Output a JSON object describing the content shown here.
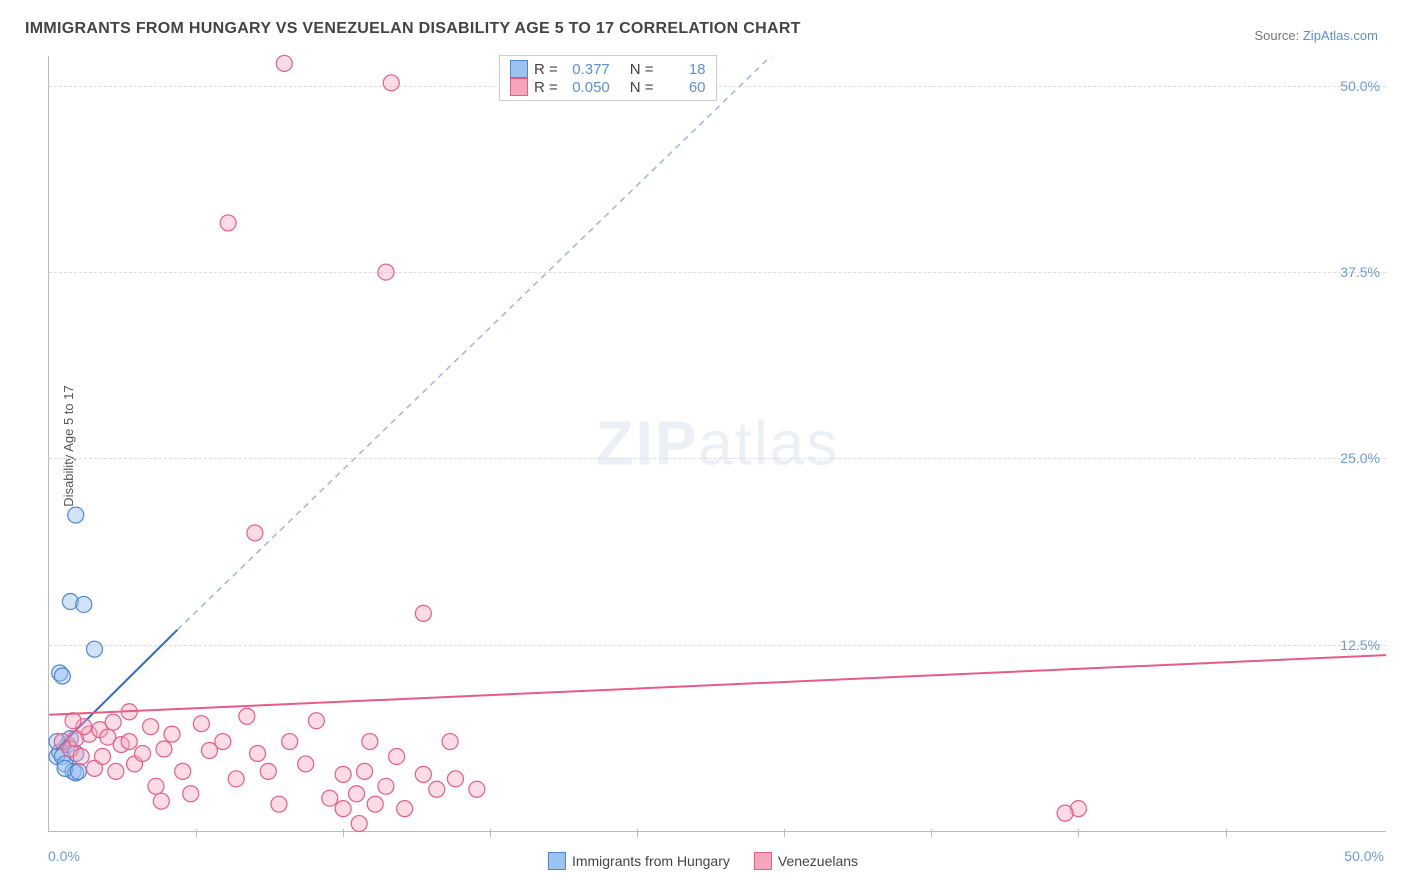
{
  "title": "IMMIGRANTS FROM HUNGARY VS VENEZUELAN DISABILITY AGE 5 TO 17 CORRELATION CHART",
  "source_prefix": "Source: ",
  "source_link": "ZipAtlas.com",
  "ylabel": "Disability Age 5 to 17",
  "watermark_bold": "ZIP",
  "watermark_rest": "atlas",
  "chart": {
    "type": "scatter",
    "xlim": [
      0,
      50
    ],
    "ylim": [
      0,
      52
    ],
    "xunit": "%",
    "yunit": "%",
    "xticks": [
      5.5,
      11,
      16.5,
      22,
      27.5,
      33,
      38.5,
      44
    ],
    "yticks": [
      {
        "v": 12.5,
        "label": "12.5%"
      },
      {
        "v": 25.0,
        "label": "25.0%"
      },
      {
        "v": 37.5,
        "label": "37.5%"
      },
      {
        "v": 50.0,
        "label": "50.0%"
      }
    ],
    "xmin_label": "0.0%",
    "xmax_label": "50.0%",
    "background_color": "#ffffff",
    "grid_color": "#dddddd",
    "marker_radius": 8,
    "series": [
      {
        "key": "hungary",
        "label": "Immigrants from Hungary",
        "fill": "#9cc2ee",
        "fill_opacity": 0.45,
        "stroke": "#4f86d1",
        "r_value": "0.377",
        "n_value": "18",
        "trend": {
          "x1": 0.3,
          "y1": 5.5,
          "x2": 4.8,
          "y2": 13.5,
          "color": "#2f6bc2",
          "width": 2,
          "dash": "none",
          "ext_x2": 27.0,
          "ext_y2": 52.0,
          "ext_dash": "6,5",
          "ext_color": "#9db8d6"
        },
        "points": [
          [
            0.3,
            5.0
          ],
          [
            0.4,
            5.3
          ],
          [
            0.5,
            5.0
          ],
          [
            0.6,
            4.5
          ],
          [
            0.7,
            5.8
          ],
          [
            0.8,
            6.2
          ],
          [
            0.9,
            4.0
          ],
          [
            1.0,
            5.2
          ],
          [
            0.4,
            10.6
          ],
          [
            0.5,
            10.4
          ],
          [
            0.8,
            15.4
          ],
          [
            1.3,
            15.2
          ],
          [
            1.7,
            12.2
          ],
          [
            1.0,
            21.2
          ],
          [
            1.0,
            3.9
          ],
          [
            0.6,
            4.2
          ],
          [
            1.1,
            4.0
          ],
          [
            0.3,
            6.0
          ]
        ]
      },
      {
        "key": "venezuelans",
        "label": "Venezuelans",
        "fill": "#f5a6bb",
        "fill_opacity": 0.4,
        "stroke": "#e75c86",
        "r_value": "0.050",
        "n_value": "60",
        "trend": {
          "x1": 0,
          "y1": 7.8,
          "x2": 50,
          "y2": 11.8,
          "color": "#e75c86",
          "width": 2,
          "dash": "none"
        },
        "points": [
          [
            0.5,
            6.0
          ],
          [
            0.8,
            5.5
          ],
          [
            1.0,
            6.2
          ],
          [
            1.2,
            5.0
          ],
          [
            1.5,
            6.5
          ],
          [
            1.7,
            4.2
          ],
          [
            1.9,
            6.8
          ],
          [
            2.0,
            5.0
          ],
          [
            2.2,
            6.3
          ],
          [
            2.5,
            4.0
          ],
          [
            2.7,
            5.8
          ],
          [
            3.0,
            6.0
          ],
          [
            3.2,
            4.5
          ],
          [
            3.5,
            5.2
          ],
          [
            3.8,
            7.0
          ],
          [
            4.0,
            3.0
          ],
          [
            4.3,
            5.5
          ],
          [
            4.6,
            6.5
          ],
          [
            5.0,
            4.0
          ],
          [
            5.3,
            2.5
          ],
          [
            5.7,
            7.2
          ],
          [
            6.0,
            5.4
          ],
          [
            6.5,
            6.0
          ],
          [
            7.0,
            3.5
          ],
          [
            7.4,
            7.7
          ],
          [
            7.8,
            5.2
          ],
          [
            8.2,
            4.0
          ],
          [
            8.6,
            1.8
          ],
          [
            9.0,
            6.0
          ],
          [
            9.6,
            4.5
          ],
          [
            10.0,
            7.4
          ],
          [
            10.5,
            2.2
          ],
          [
            11.0,
            3.8
          ],
          [
            11.0,
            1.5
          ],
          [
            11.5,
            2.5
          ],
          [
            11.6,
            0.5
          ],
          [
            11.8,
            4.0
          ],
          [
            12.0,
            6.0
          ],
          [
            12.2,
            1.8
          ],
          [
            12.6,
            3.0
          ],
          [
            13.0,
            5.0
          ],
          [
            13.3,
            1.5
          ],
          [
            14.0,
            3.8
          ],
          [
            14.0,
            14.6
          ],
          [
            14.5,
            2.8
          ],
          [
            15.0,
            6.0
          ],
          [
            15.2,
            3.5
          ],
          [
            16.0,
            2.8
          ],
          [
            6.7,
            40.8
          ],
          [
            7.7,
            20.0
          ],
          [
            12.6,
            37.5
          ],
          [
            12.8,
            50.2
          ],
          [
            8.8,
            51.5
          ],
          [
            38.5,
            1.5
          ],
          [
            38.0,
            1.2
          ],
          [
            3.0,
            8.0
          ],
          [
            2.4,
            7.3
          ],
          [
            1.3,
            7.0
          ],
          [
            4.2,
            2.0
          ],
          [
            0.9,
            7.4
          ]
        ]
      }
    ]
  },
  "legend_top": {
    "r_label": "R =",
    "n_label": "N ="
  }
}
